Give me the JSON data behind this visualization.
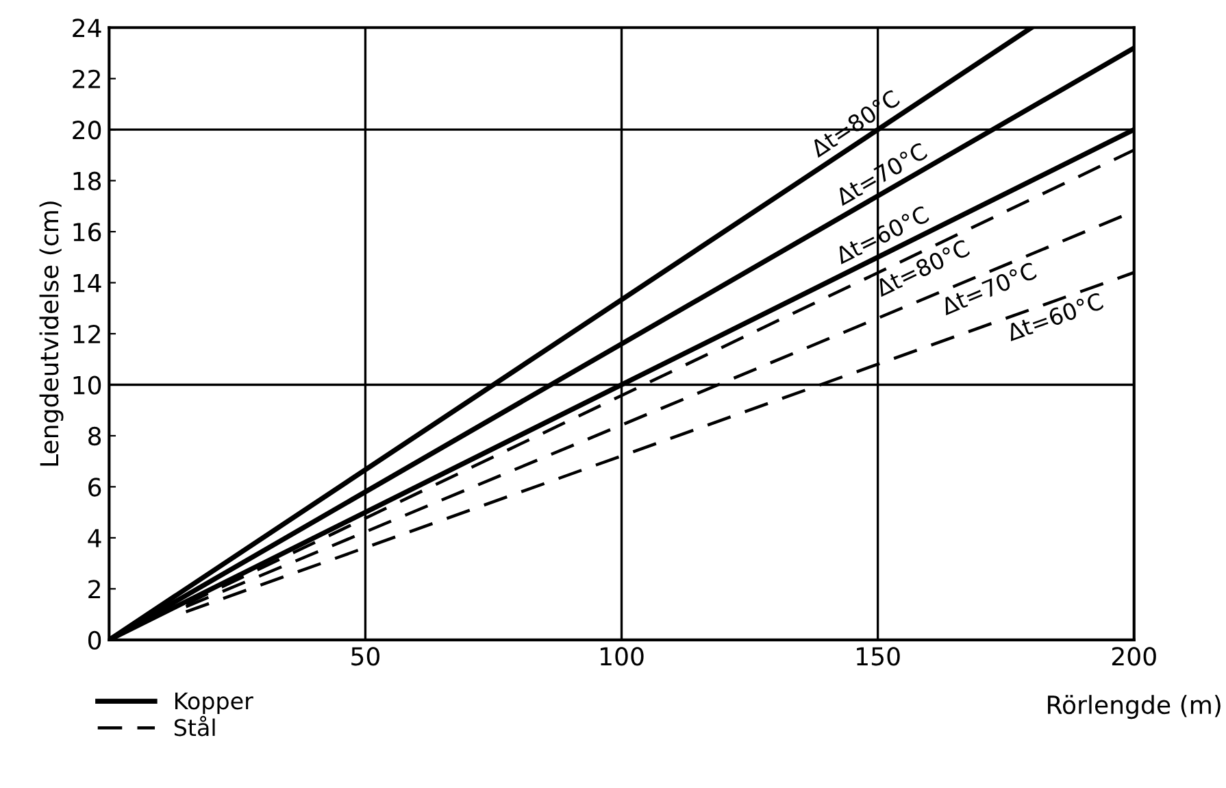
{
  "chart_data": {
    "type": "line",
    "xlabel": "Rörlengde (m)",
    "ylabel": "Lengdeutvidelse (cm)",
    "xlim": [
      0,
      200
    ],
    "ylim": [
      0,
      24
    ],
    "xticks": [
      {
        "value": 0,
        "label": null
      },
      50,
      100,
      150,
      200
    ],
    "yticks": [
      0,
      2,
      4,
      6,
      8,
      10,
      12,
      14,
      16,
      18,
      20,
      22,
      24
    ],
    "grid": "x",
    "legend": "bottom left",
    "ref_lines": [
      {
        "axis": "y",
        "value": 10,
        "color": "#000000"
      },
      {
        "axis": "y",
        "value": 20,
        "color": "#000000"
      }
    ],
    "series": [
      {
        "name": "Kopper",
        "color": "#000000",
        "line_style": "solid",
        "x": [
          0,
          180
        ],
        "values": [
          0,
          24
        ]
      },
      {
        "color": "#000000",
        "line_style": "solid",
        "x": [
          0,
          200
        ],
        "values": [
          0,
          23.2
        ]
      },
      {
        "color": "#000000",
        "line_style": "solid",
        "x": [
          0,
          200
        ],
        "values": [
          0,
          20
        ]
      },
      {
        "name": "Stål",
        "color": "#000000",
        "line_style": "dashed",
        "x": [
          15,
          200
        ],
        "values": [
          1.4,
          19.2
        ]
      },
      {
        "color": "#000000",
        "line_style": "dashed",
        "x": [
          15,
          200
        ],
        "values": [
          1.3,
          16.8
        ]
      },
      {
        "color": "#000000",
        "line_style": "dashed",
        "x": [
          15,
          200
        ],
        "values": [
          1.1,
          14.4
        ]
      }
    ],
    "annotations": [
      {
        "text": "Δt=80°C",
        "x": 147,
        "y": 19.6
      },
      {
        "text": "Δt=70°C",
        "x": 152,
        "y": 17.6
      },
      {
        "text": "Δt=60°C",
        "x": 152,
        "y": 15.2
      },
      {
        "text": "Δt=80°C",
        "x": 158,
        "y": 15.2
      },
      {
        "text": "Δt=70°C",
        "x": 171,
        "y": 14.4
      },
      {
        "text": "Δt=60°C",
        "x": 184,
        "y": 13.3
      }
    ]
  }
}
